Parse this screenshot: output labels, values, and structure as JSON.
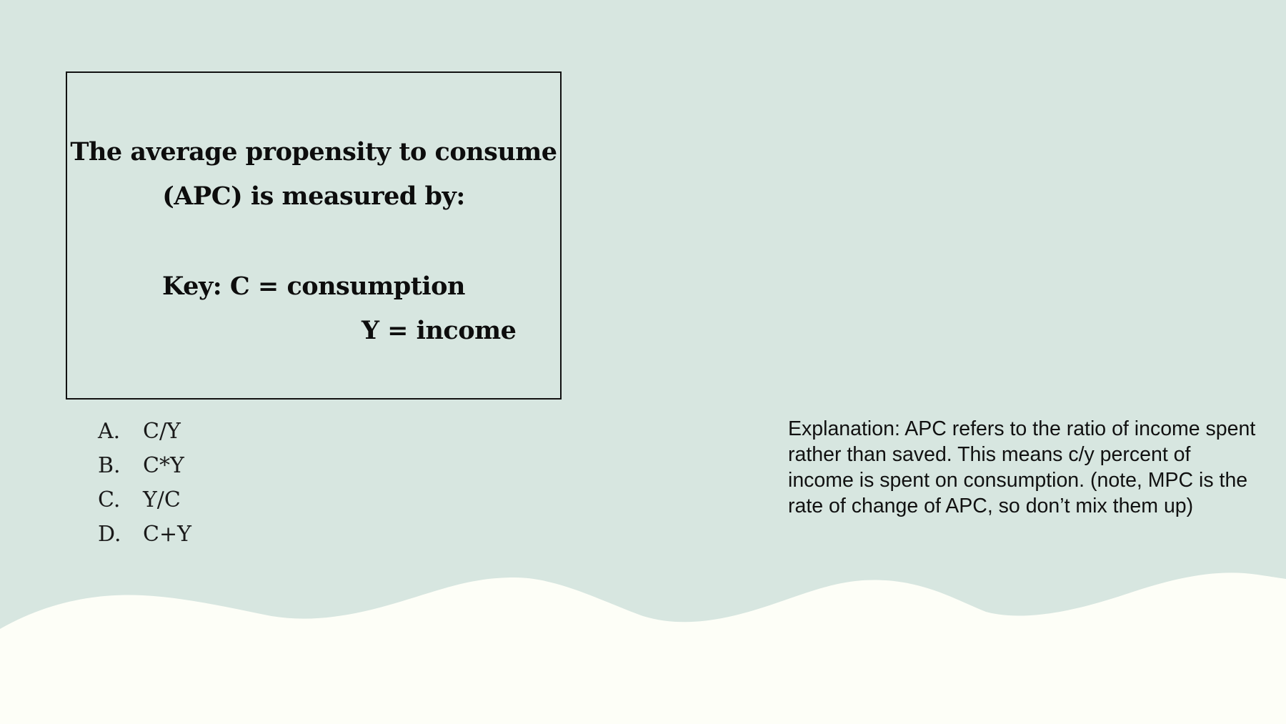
{
  "question": {
    "line1": "The average propensity to consume",
    "line2": "(APC) is measured by:",
    "key_line1": "Key: C = consumption",
    "key_line2": "Y = income"
  },
  "options": [
    {
      "letter": "A.",
      "text": "C/Y"
    },
    {
      "letter": "B.",
      "text": "C*Y"
    },
    {
      "letter": "C.",
      "text": "Y/C"
    },
    {
      "letter": "D.",
      "text": "C+Y"
    }
  ],
  "explanation": "Explanation: APC refers to the ratio of income spent rather than saved. This means c/y percent of income is spent on consumption. (note, MPC is the rate of change of APC, so don’t mix them up)",
  "colors": {
    "background": "#d7e6e0",
    "wave": "#fdfef7",
    "text": "#0d0d0d"
  }
}
